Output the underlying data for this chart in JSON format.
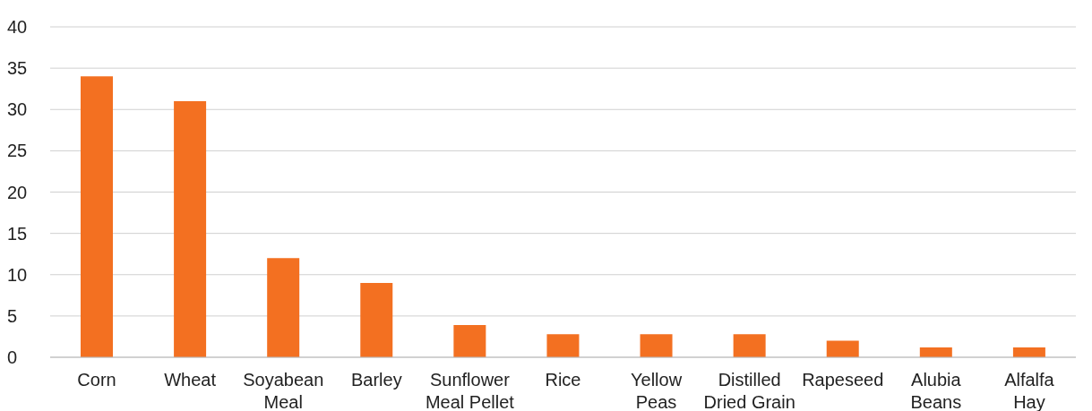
{
  "chart_data": {
    "type": "bar",
    "categories": [
      "Corn",
      "Wheat",
      "Soyabean Meal",
      "Barley",
      "Sunflower Meal Pellet",
      "Rice",
      "Yellow Peas",
      "Distilled Dried Grain",
      "Rapeseed",
      "Alubia Beans",
      "Alfalfa Hay"
    ],
    "values": [
      34,
      31,
      12,
      9,
      3.9,
      2.8,
      2.8,
      2.8,
      2,
      1.2,
      1.2
    ],
    "color": "#f37021",
    "ylim": [
      0,
      40
    ],
    "yticks": [
      0,
      5,
      10,
      15,
      20,
      25,
      30,
      35,
      40
    ],
    "grid": "y",
    "legend": false
  }
}
